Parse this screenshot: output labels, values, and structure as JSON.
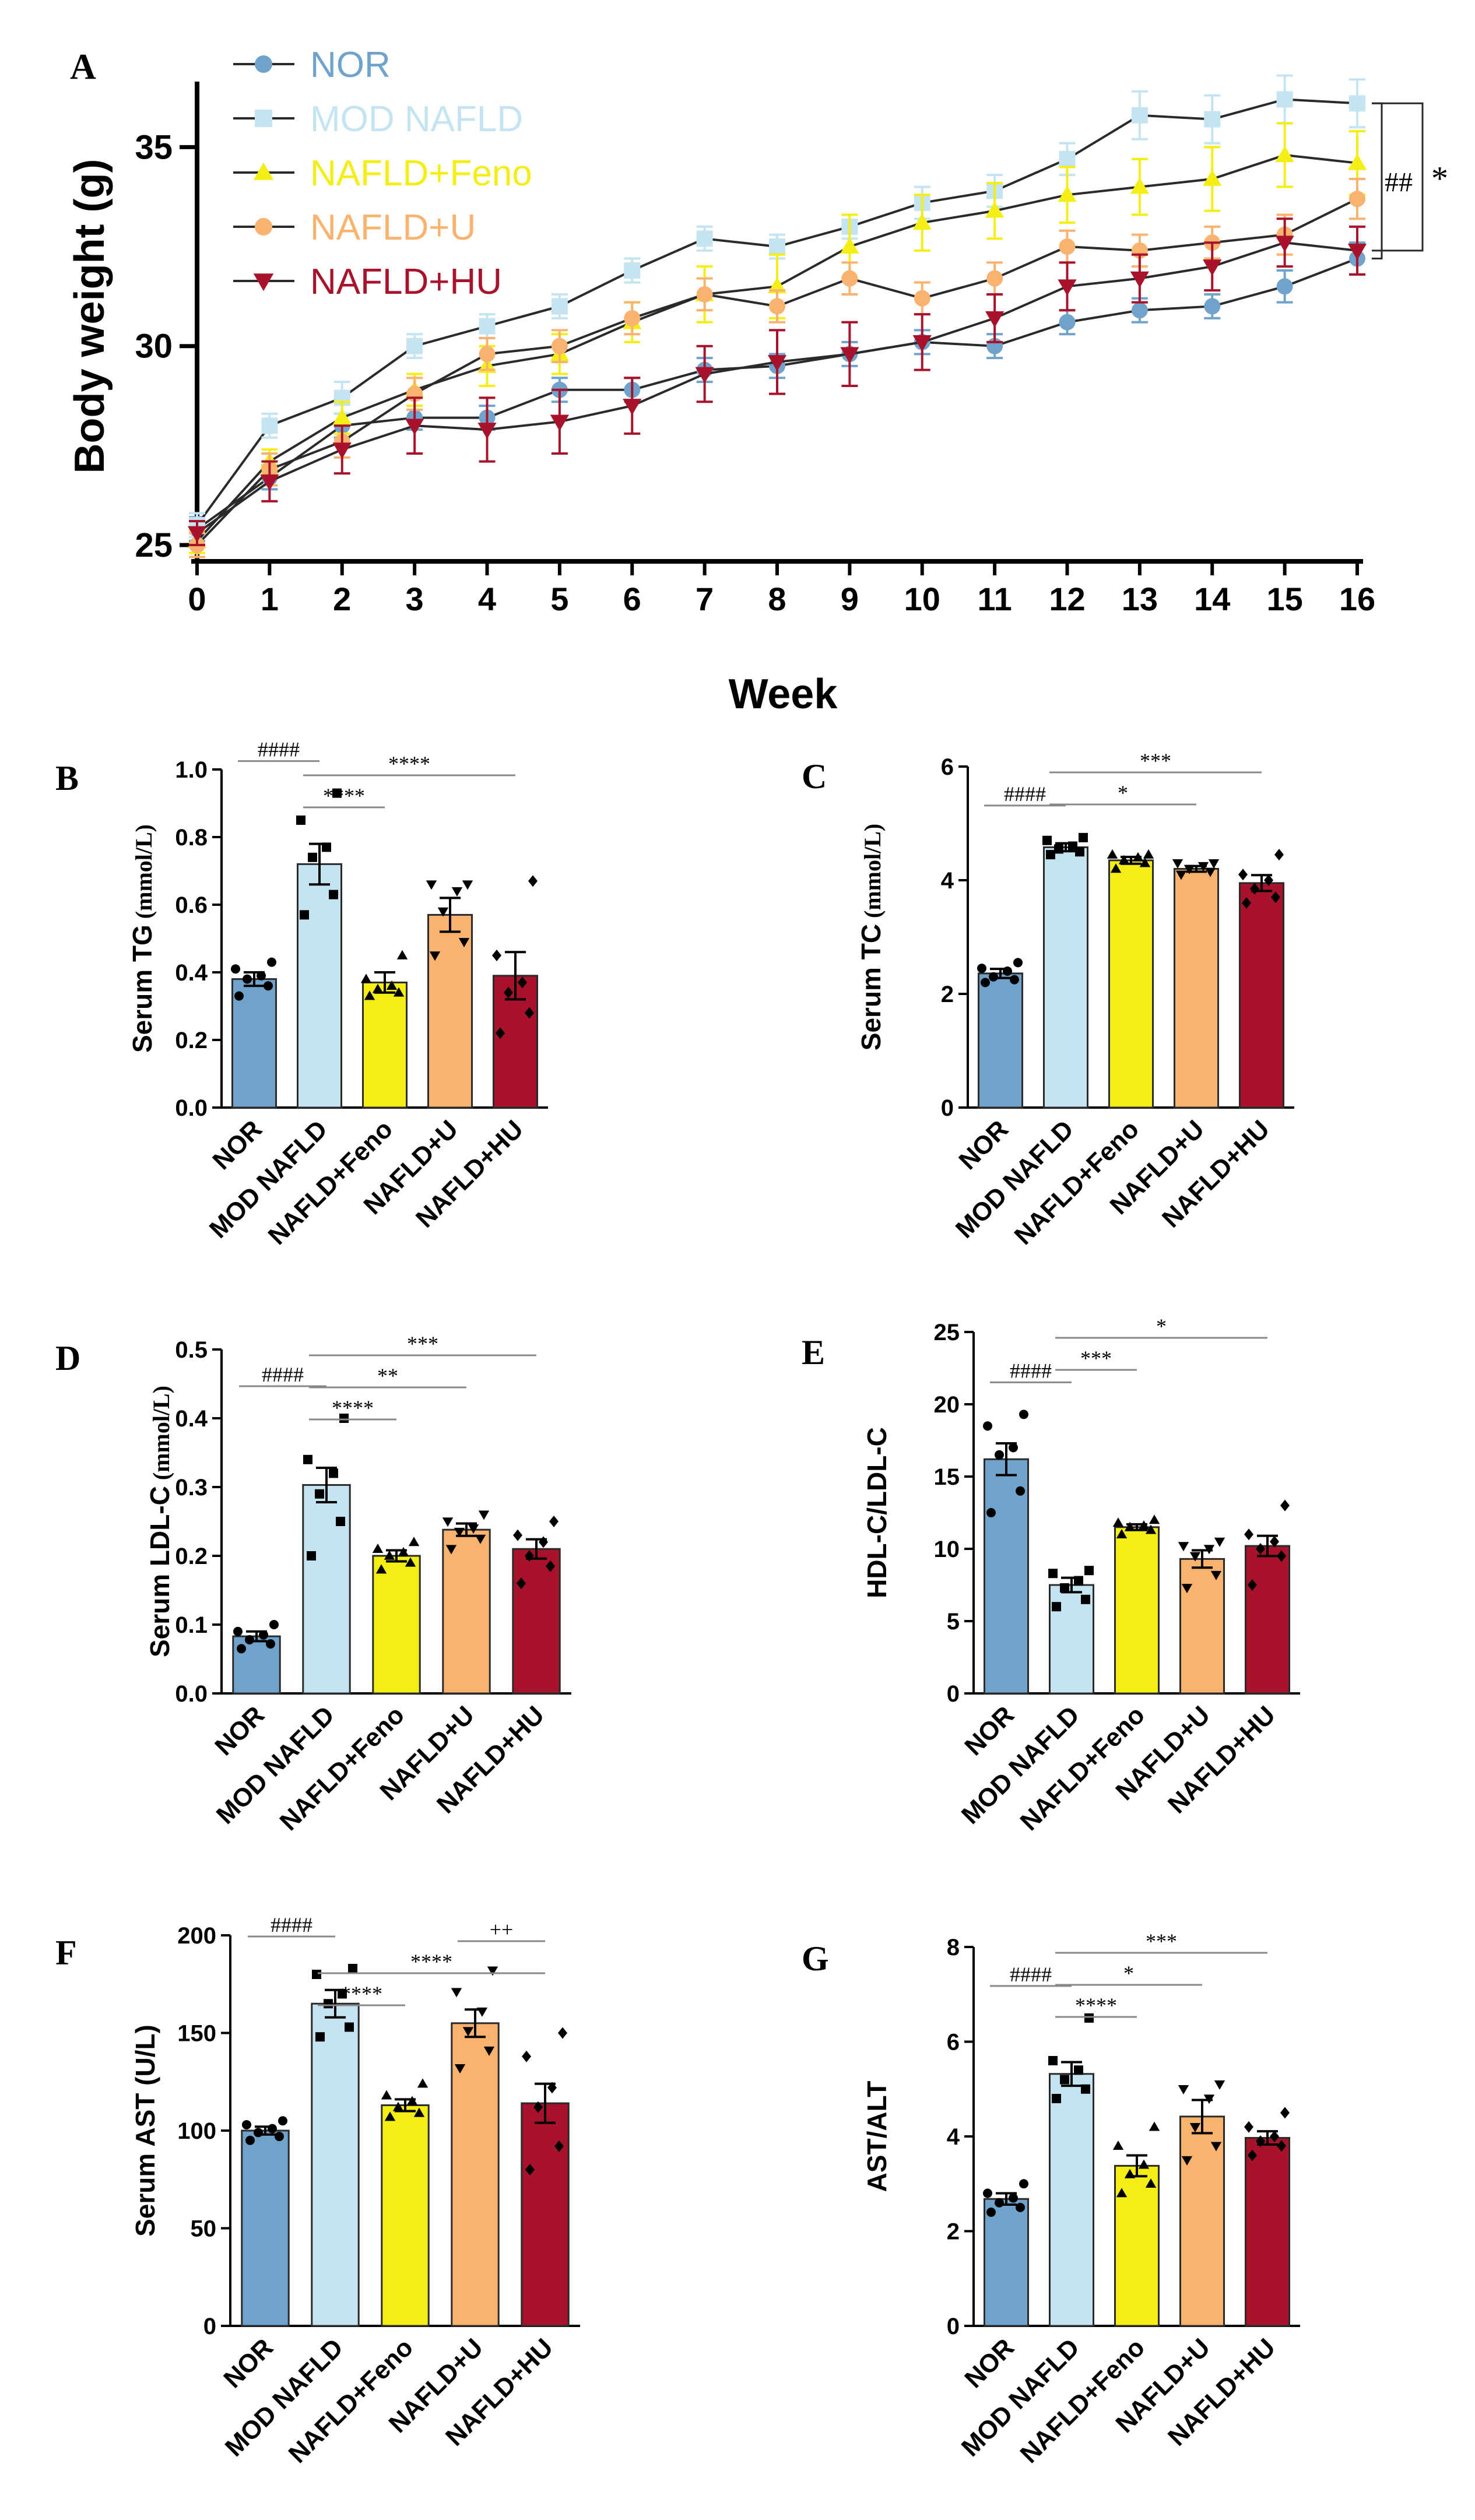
{
  "groups": [
    "NOR",
    "MOD NAFLD",
    "NAFLD+Feno",
    "NAFLD+U",
    "NAFLD+HU"
  ],
  "colors": {
    "NOR": "#6fa3cc",
    "MOD NAFLD": "#c5e4f1",
    "NAFLD+Feno": "#f4ee14",
    "NAFLD+U": "#f9b36e",
    "NAFLD+HU": "#a8132b",
    "line": "#2a2a2a",
    "text": "#000000"
  },
  "markers": {
    "NOR": "circle",
    "MOD NAFLD": "square",
    "NAFLD+Feno": "triangle-up",
    "NAFLD+U": "circle",
    "NAFLD+HU": "triangle-down"
  },
  "chart_data": [
    {
      "panel": "A",
      "type": "line",
      "xlabel": "Week",
      "ylabel": "Body weight (g)",
      "xlim": [
        0,
        16
      ],
      "ylim": [
        25,
        36.5
      ],
      "yticks": [
        25,
        30,
        35
      ],
      "x": [
        0,
        1,
        2,
        3,
        4,
        5,
        6,
        7,
        8,
        9,
        10,
        11,
        12,
        13,
        14,
        15,
        16
      ],
      "series": [
        {
          "name": "NOR",
          "values": [
            25.4,
            26.7,
            28.0,
            28.2,
            28.2,
            28.9,
            28.9,
            29.4,
            29.5,
            29.8,
            30.1,
            30.0,
            30.6,
            30.9,
            31.0,
            31.5,
            32.2
          ],
          "errors": [
            0.3,
            0.3,
            0.3,
            0.3,
            0.3,
            0.3,
            0.3,
            0.3,
            0.3,
            0.3,
            0.3,
            0.3,
            0.3,
            0.3,
            0.3,
            0.4,
            0.4
          ]
        },
        {
          "name": "MOD NAFLD",
          "values": [
            25.5,
            28.0,
            28.7,
            30.0,
            30.5,
            31.0,
            31.9,
            32.7,
            32.5,
            33.0,
            33.6,
            33.9,
            34.7,
            35.8,
            35.7,
            36.2,
            36.1
          ],
          "errors": [
            0.3,
            0.3,
            0.4,
            0.3,
            0.3,
            0.3,
            0.3,
            0.3,
            0.3,
            0.3,
            0.4,
            0.4,
            0.4,
            0.6,
            0.6,
            0.6,
            0.6
          ]
        },
        {
          "name": "NAFLD+Feno",
          "values": [
            25.1,
            27.1,
            28.2,
            28.9,
            29.5,
            29.8,
            30.6,
            31.3,
            31.5,
            32.5,
            33.1,
            33.4,
            33.8,
            34.0,
            34.2,
            34.8,
            34.6
          ],
          "errors": [
            0.3,
            0.3,
            0.4,
            0.4,
            0.5,
            0.5,
            0.5,
            0.7,
            0.8,
            0.8,
            0.7,
            0.7,
            0.7,
            0.7,
            0.8,
            0.8,
            0.8
          ]
        },
        {
          "name": "NAFLD+U",
          "values": [
            25.0,
            26.9,
            27.6,
            28.8,
            29.8,
            30.0,
            30.7,
            31.3,
            31.0,
            31.7,
            31.2,
            31.7,
            32.5,
            32.4,
            32.6,
            32.8,
            33.7
          ],
          "errors": [
            0.3,
            0.4,
            0.4,
            0.4,
            0.4,
            0.4,
            0.4,
            0.4,
            0.4,
            0.4,
            0.4,
            0.4,
            0.4,
            0.4,
            0.4,
            0.5,
            0.5
          ]
        },
        {
          "name": "NAFLD+HU",
          "values": [
            25.3,
            26.6,
            27.4,
            28.0,
            27.9,
            28.1,
            28.5,
            29.3,
            29.6,
            29.8,
            30.1,
            30.7,
            31.5,
            31.7,
            32.0,
            32.6,
            32.4
          ],
          "errors": [
            0.3,
            0.5,
            0.6,
            0.7,
            0.8,
            0.8,
            0.7,
            0.7,
            0.8,
            0.8,
            0.7,
            0.6,
            0.6,
            0.6,
            0.6,
            0.6,
            0.6
          ]
        }
      ],
      "significance": [
        {
          "label": "##",
          "between": [
            "MOD NAFLD",
            "NOR"
          ]
        },
        {
          "label": "*",
          "between": [
            "MOD NAFLD",
            "NAFLD+HU"
          ]
        }
      ]
    },
    {
      "panel": "B",
      "type": "bar",
      "ylabel_main": "Serum TG",
      "ylabel_unit": " (mmol/L)",
      "categories": [
        "NOR",
        "MOD NAFLD",
        "NAFLD+Feno",
        "NAFLD+U",
        "NAFLD+HU"
      ],
      "values": [
        0.38,
        0.72,
        0.37,
        0.57,
        0.39
      ],
      "errors": [
        0.02,
        0.06,
        0.03,
        0.05,
        0.07
      ],
      "points": [
        [
          0.33,
          0.36,
          0.38,
          0.39,
          0.41,
          0.43
        ],
        [
          0.57,
          0.63,
          0.74,
          0.77,
          0.85,
          0.93
        ],
        [
          0.33,
          0.34,
          0.35,
          0.36,
          0.38,
          0.45
        ],
        [
          0.45,
          0.49,
          0.58,
          0.64,
          0.66,
          0.66
        ],
        [
          0.22,
          0.28,
          0.34,
          0.37,
          0.45,
          0.67
        ]
      ],
      "ylim": [
        0,
        1.0
      ],
      "yticks": [
        "0.0",
        "0.2",
        "0.4",
        "0.6",
        "0.8",
        "1.0"
      ],
      "brackets": [
        {
          "from": 0,
          "to": 1,
          "label": "####"
        },
        {
          "from": 1,
          "to": 2,
          "label": "****"
        },
        {
          "from": 1,
          "to": 4,
          "label": "****"
        }
      ]
    },
    {
      "panel": "C",
      "type": "bar",
      "ylabel_main": "Serum TC",
      "ylabel_unit": " (mmol/L)",
      "categories": [
        "NOR",
        "MOD NAFLD",
        "NAFLD+Feno",
        "NAFLD+U",
        "NAFLD+HU"
      ],
      "values": [
        2.36,
        4.58,
        4.35,
        4.2,
        3.95
      ],
      "errors": [
        0.08,
        0.07,
        0.06,
        0.05,
        0.14
      ],
      "points": [
        [
          2.2,
          2.25,
          2.3,
          2.4,
          2.45,
          2.55
        ],
        [
          4.45,
          4.5,
          4.55,
          4.6,
          4.7,
          4.75
        ],
        [
          4.2,
          4.3,
          4.35,
          4.4,
          4.45,
          4.45
        ],
        [
          4.1,
          4.15,
          4.2,
          4.25,
          4.3,
          4.3
        ],
        [
          3.6,
          3.7,
          3.85,
          4.0,
          4.1,
          4.45
        ]
      ],
      "ylim": [
        0,
        6
      ],
      "yticks": [
        "0",
        "2",
        "4",
        "6"
      ],
      "brackets": [
        {
          "from": 0,
          "to": 1,
          "label": "####"
        },
        {
          "from": 1,
          "to": 3,
          "label": "*"
        },
        {
          "from": 1,
          "to": 4,
          "label": "***"
        }
      ]
    },
    {
      "panel": "D",
      "type": "bar",
      "ylabel_main": "Serum LDL-C",
      "ylabel_unit": " (mmol/L)",
      "categories": [
        "NOR",
        "MOD NAFLD",
        "NAFLD+Feno",
        "NAFLD+U",
        "NAFLD+HU"
      ],
      "values": [
        0.083,
        0.303,
        0.2,
        0.238,
        0.21
      ],
      "errors": [
        0.007,
        0.025,
        0.008,
        0.009,
        0.014
      ],
      "points": [
        [
          0.065,
          0.072,
          0.078,
          0.085,
          0.09,
          0.1
        ],
        [
          0.2,
          0.25,
          0.29,
          0.32,
          0.34,
          0.4
        ],
        [
          0.18,
          0.19,
          0.2,
          0.205,
          0.21,
          0.22
        ],
        [
          0.21,
          0.225,
          0.235,
          0.24,
          0.25,
          0.26
        ],
        [
          0.16,
          0.185,
          0.2,
          0.22,
          0.23,
          0.25
        ]
      ],
      "ylim": [
        0,
        0.5
      ],
      "yticks": [
        "0.0",
        "0.1",
        "0.2",
        "0.3",
        "0.4",
        "0.5"
      ],
      "brackets": [
        {
          "from": 0,
          "to": 1,
          "label": "####"
        },
        {
          "from": 1,
          "to": 2,
          "label": "****"
        },
        {
          "from": 1,
          "to": 3,
          "label": "**"
        },
        {
          "from": 1,
          "to": 4,
          "label": "***"
        }
      ]
    },
    {
      "panel": "E",
      "type": "bar",
      "ylabel_main": "HDL-C/LDL-C",
      "ylabel_unit": "",
      "categories": [
        "NOR",
        "MOD NAFLD",
        "NAFLD+Feno",
        "NAFLD+U",
        "NAFLD+HU"
      ],
      "values": [
        16.2,
        7.5,
        11.5,
        9.3,
        10.2
      ],
      "errors": [
        1.1,
        0.5,
        0.2,
        0.6,
        0.7
      ],
      "points": [
        [
          12.5,
          14.0,
          16.5,
          17.0,
          18.5,
          19.3
        ],
        [
          6.0,
          6.5,
          7.3,
          7.8,
          8.3,
          8.5
        ],
        [
          11.0,
          11.3,
          11.5,
          11.6,
          11.8,
          12.0
        ],
        [
          7.3,
          8.2,
          9.5,
          10.0,
          10.2,
          10.5
        ],
        [
          7.5,
          9.5,
          10.0,
          10.5,
          11.0,
          13.0
        ]
      ],
      "ylim": [
        0,
        25
      ],
      "yticks": [
        "0",
        "5",
        "10",
        "15",
        "20",
        "25"
      ],
      "brackets": [
        {
          "from": 0,
          "to": 1,
          "label": "####"
        },
        {
          "from": 1,
          "to": 2,
          "label": "***"
        },
        {
          "from": 1,
          "to": 4,
          "label": "*"
        }
      ]
    },
    {
      "panel": "F",
      "type": "bar",
      "ylabel_main": "Serum AST (U/L)",
      "ylabel_unit": "",
      "categories": [
        "NOR",
        "MOD NAFLD",
        "NAFLD+Feno",
        "NAFLD+U",
        "NAFLD+HU"
      ],
      "values": [
        100,
        165,
        113,
        155,
        114
      ],
      "errors": [
        2,
        7,
        3,
        7,
        10
      ],
      "points": [
        [
          95,
          97,
          99,
          101,
          103,
          105
        ],
        [
          148,
          153,
          165,
          170,
          180,
          183
        ],
        [
          107,
          109,
          112,
          115,
          118,
          124
        ],
        [
          132,
          141,
          151,
          161,
          171,
          182
        ],
        [
          80,
          92,
          112,
          122,
          138,
          150
        ]
      ],
      "ylim": [
        0,
        200
      ],
      "yticks": [
        "0",
        "50",
        "100",
        "150",
        "200"
      ],
      "brackets": [
        {
          "from": 0,
          "to": 1,
          "label": "####"
        },
        {
          "from": 1,
          "to": 2,
          "label": "****"
        },
        {
          "from": 1,
          "to": 4,
          "label": "****"
        },
        {
          "from": 3,
          "to": 4,
          "label": "++"
        }
      ]
    },
    {
      "panel": "G",
      "type": "bar",
      "ylabel_main": "AST/ALT",
      "ylabel_unit": "",
      "categories": [
        "NOR",
        "MOD NAFLD",
        "NAFLD+Feno",
        "NAFLD+U",
        "NAFLD+HU"
      ],
      "values": [
        2.68,
        5.32,
        3.38,
        4.42,
        3.97
      ],
      "errors": [
        0.12,
        0.25,
        0.22,
        0.35,
        0.14
      ],
      "points": [
        [
          2.4,
          2.5,
          2.6,
          2.7,
          2.8,
          3.0
        ],
        [
          4.8,
          5.0,
          5.2,
          5.4,
          5.6,
          6.5
        ],
        [
          2.8,
          3.0,
          3.2,
          3.4,
          3.8,
          4.2
        ],
        [
          3.5,
          3.8,
          4.2,
          4.8,
          5.0,
          5.1
        ],
        [
          3.6,
          3.8,
          3.9,
          4.0,
          4.2,
          4.5
        ]
      ],
      "ylim": [
        0,
        8
      ],
      "yticks": [
        "0",
        "2",
        "4",
        "6",
        "8"
      ],
      "brackets": [
        {
          "from": 0,
          "to": 1,
          "label": "####"
        },
        {
          "from": 1,
          "to": 2,
          "label": "****"
        },
        {
          "from": 1,
          "to": 3,
          "label": "*"
        },
        {
          "from": 1,
          "to": 4,
          "label": "***"
        }
      ]
    }
  ]
}
